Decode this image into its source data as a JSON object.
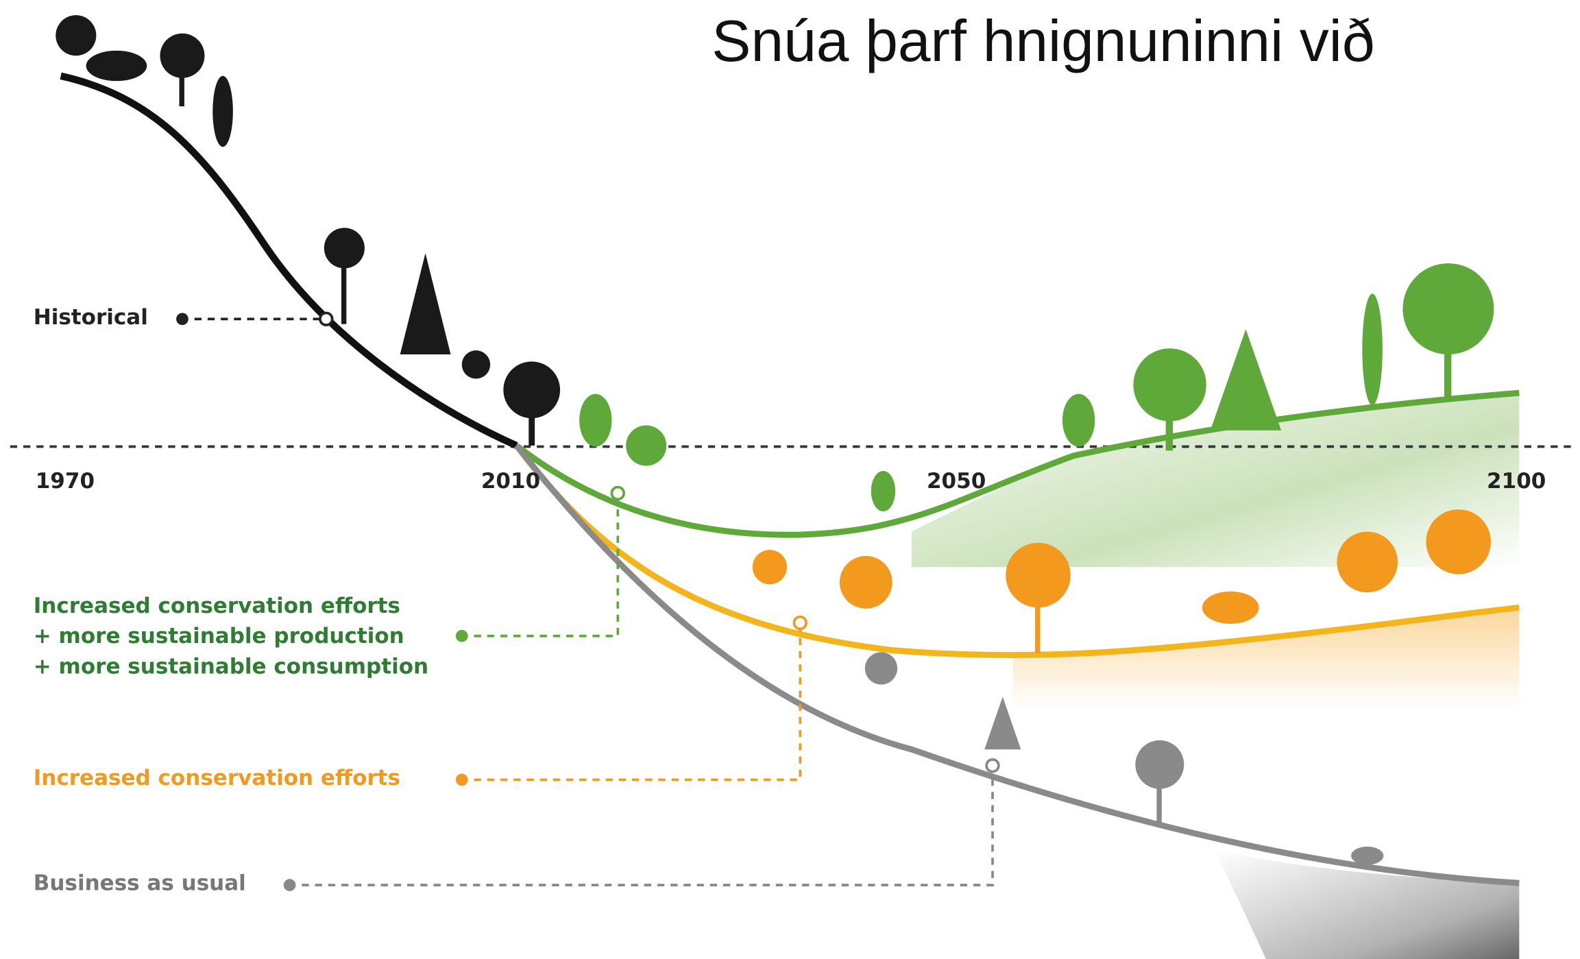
{
  "title": "Snúa þarf hnignuninni við",
  "years": [
    "1970",
    "2010",
    "2050",
    "2100"
  ],
  "scenarios": {
    "historical": "Historical",
    "sustainable": [
      "Increased conservation efforts",
      "+ more sustainable production",
      "+ more sustainable consumption"
    ],
    "conservation": "Increased conservation efforts",
    "business": "Business as usual"
  }
}
